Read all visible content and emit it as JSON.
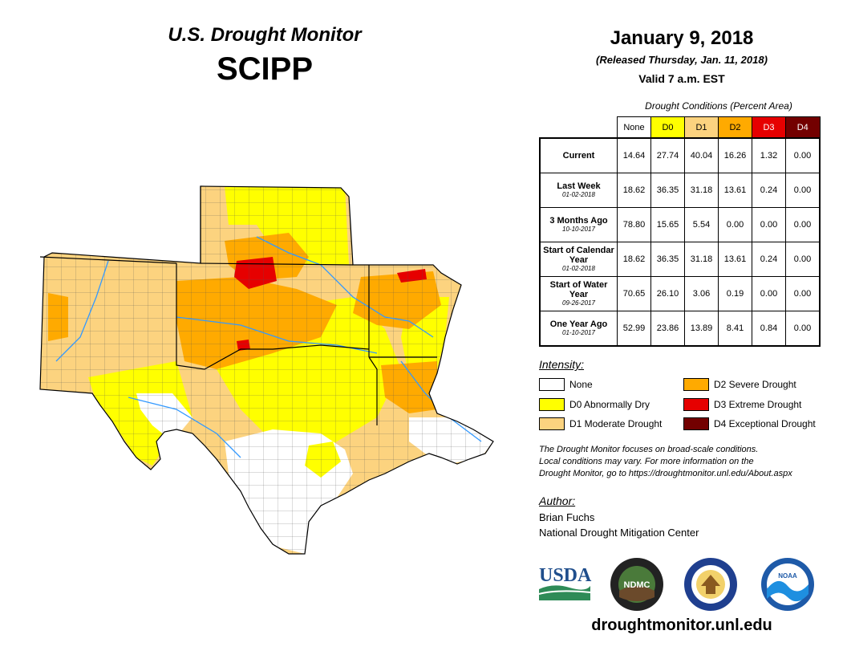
{
  "header": {
    "title": "U.S. Drought Monitor",
    "region": "SCIPP"
  },
  "date": {
    "main": "January 9, 2018",
    "released": "(Released Thursday, Jan. 11, 2018)",
    "valid": "Valid 7 a.m. EST"
  },
  "table": {
    "caption": "Drought Conditions (Percent Area)",
    "columns": [
      {
        "label": "None",
        "color": "#ffffff"
      },
      {
        "label": "D0",
        "color": "#ffff00"
      },
      {
        "label": "D1",
        "color": "#fcd37f"
      },
      {
        "label": "D2",
        "color": "#ffaa00"
      },
      {
        "label": "D3",
        "color": "#e60000"
      },
      {
        "label": "D4",
        "color": "#730000"
      }
    ],
    "rows": [
      {
        "label": "Current",
        "sub": "",
        "values": [
          "14.64",
          "27.74",
          "40.04",
          "16.26",
          "1.32",
          "0.00"
        ]
      },
      {
        "label": "Last Week",
        "sub": "01-02-2018",
        "values": [
          "18.62",
          "36.35",
          "31.18",
          "13.61",
          "0.24",
          "0.00"
        ]
      },
      {
        "label": "3 Months Ago",
        "sub": "10-10-2017",
        "values": [
          "78.80",
          "15.65",
          "5.54",
          "0.00",
          "0.00",
          "0.00"
        ]
      },
      {
        "label": "Start of Calendar Year",
        "sub": "01-02-2018",
        "values": [
          "18.62",
          "36.35",
          "31.18",
          "13.61",
          "0.24",
          "0.00"
        ]
      },
      {
        "label": "Start of Water Year",
        "sub": "09-26-2017",
        "values": [
          "70.65",
          "26.10",
          "3.06",
          "0.19",
          "0.00",
          "0.00"
        ]
      },
      {
        "label": "One Year Ago",
        "sub": "01-10-2017",
        "values": [
          "52.99",
          "23.86",
          "13.89",
          "8.41",
          "0.84",
          "0.00"
        ]
      }
    ]
  },
  "legend": {
    "title": "Intensity:",
    "items": [
      {
        "label": "None",
        "color": "#ffffff"
      },
      {
        "label": "D0 Abnormally Dry",
        "color": "#ffff00"
      },
      {
        "label": "D1 Moderate Drought",
        "color": "#fcd37f"
      },
      {
        "label": "D2 Severe Drought",
        "color": "#ffaa00"
      },
      {
        "label": "D3 Extreme Drought",
        "color": "#e60000"
      },
      {
        "label": "D4 Exceptional Drought",
        "color": "#730000"
      }
    ]
  },
  "note": {
    "line1": "The Drought Monitor focuses on broad-scale conditions.",
    "line2": "Local conditions may vary. For more information on the",
    "line3": "Drought Monitor, go to https://droughtmonitor.unl.edu/About.aspx"
  },
  "author": {
    "title": "Author:",
    "name": "Brian Fuchs",
    "org": "National Drought Mitigation Center"
  },
  "logos": {
    "usda": "USDA",
    "ndmc": "NDMC",
    "noaa": "NOAA"
  },
  "footer": {
    "url": "droughtmonitor.unl.edu"
  }
}
